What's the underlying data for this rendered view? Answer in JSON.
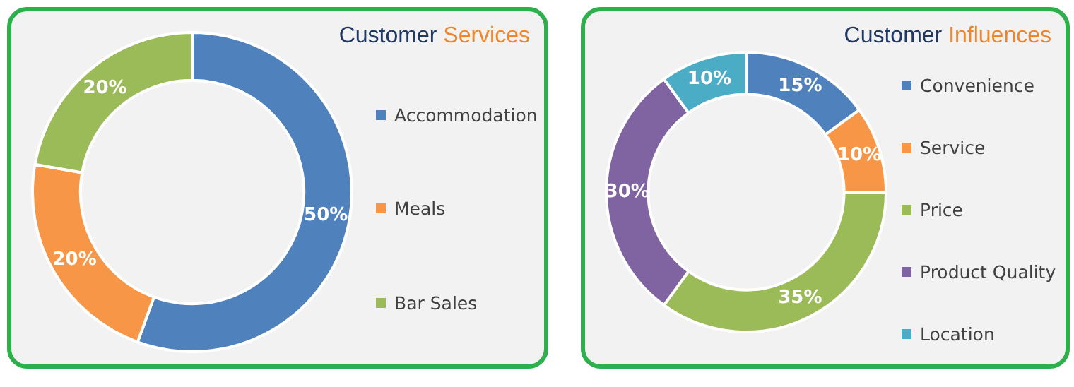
{
  "chart_data": [
    {
      "type": "donut",
      "title": "Customer Services",
      "categories": [
        "Accommodation",
        "Meals",
        "Bar Sales"
      ],
      "values": [
        50,
        20,
        20
      ],
      "colors": [
        "#4f81bd",
        "#f79646",
        "#9bbb59"
      ],
      "value_labels": [
        "50%",
        "20%",
        "20%"
      ],
      "legend": "right"
    },
    {
      "type": "donut",
      "title": "Customer Influences",
      "categories": [
        "Convenience",
        "Service",
        "Price",
        "Product Quality",
        "Location"
      ],
      "values": [
        15,
        10,
        35,
        30,
        10
      ],
      "colors": [
        "#4f81bd",
        "#f79646",
        "#9bbb59",
        "#8064a2",
        "#4bacc6"
      ],
      "value_labels": [
        "15%",
        "10%",
        "35%",
        "30%",
        "10%"
      ],
      "legend": "right"
    }
  ]
}
